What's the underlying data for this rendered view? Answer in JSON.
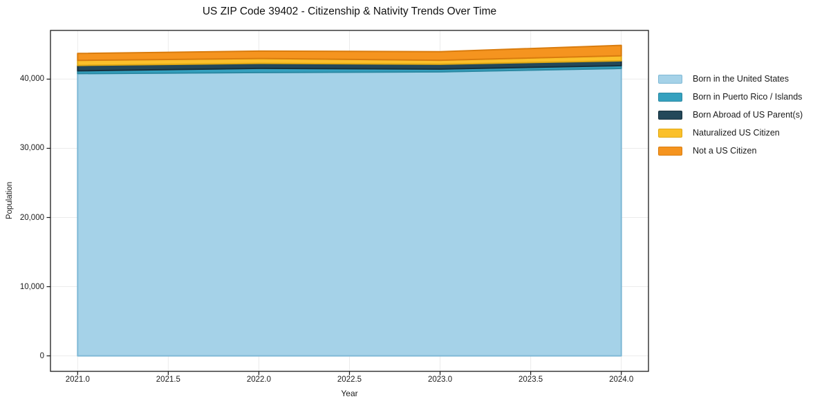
{
  "chart_data": {
    "type": "area",
    "stacked": true,
    "title": "US ZIP Code 39402 - Citizenship & Nativity Trends Over Time",
    "xlabel": "Year",
    "ylabel": "Population",
    "grid": true,
    "legend_position": "outside-right",
    "xlim": [
      2020.85,
      2024.15
    ],
    "ylim": [
      -2240,
      47040
    ],
    "x": [
      2021,
      2022,
      2023,
      2024
    ],
    "x_tick_values": [
      2021.0,
      2021.5,
      2022.0,
      2022.5,
      2023.0,
      2023.5,
      2024.0
    ],
    "x_tick_labels": [
      "2021.0",
      "2021.5",
      "2022.0",
      "2022.5",
      "2023.0",
      "2023.5",
      "2024.0"
    ],
    "y_tick_values": [
      0,
      10000,
      20000,
      30000,
      40000
    ],
    "y_tick_labels": [
      "0",
      "10,000",
      "20,000",
      "30,000",
      "40,000"
    ],
    "series": [
      {
        "name": "Born in the United States",
        "color": "#A5D2E8",
        "edge": "#7FB9D6",
        "values": [
          40800,
          40950,
          41050,
          41550
        ]
      },
      {
        "name": "Born in Puerto Rico / Islands",
        "color": "#35A1BF",
        "edge": "#2B89A3",
        "values": [
          400,
          600,
          400,
          400
        ]
      },
      {
        "name": "Born Abroad of US Parent(s)",
        "color": "#23485A",
        "edge": "#16303D",
        "values": [
          780,
          730,
          700,
          700
        ]
      },
      {
        "name": "Naturalized US Citizen",
        "color": "#FBC02B",
        "edge": "#DFA814",
        "values": [
          730,
          700,
          580,
          730
        ]
      },
      {
        "name": "Not a US Citizen",
        "color": "#F5941F",
        "edge": "#D97C0E",
        "values": [
          1000,
          1070,
          1240,
          1500
        ]
      }
    ],
    "totals": [
      43710,
      44050,
      43970,
      44880
    ],
    "grid_color": "#ebebeb",
    "spine_color": "#1a1a1a"
  }
}
